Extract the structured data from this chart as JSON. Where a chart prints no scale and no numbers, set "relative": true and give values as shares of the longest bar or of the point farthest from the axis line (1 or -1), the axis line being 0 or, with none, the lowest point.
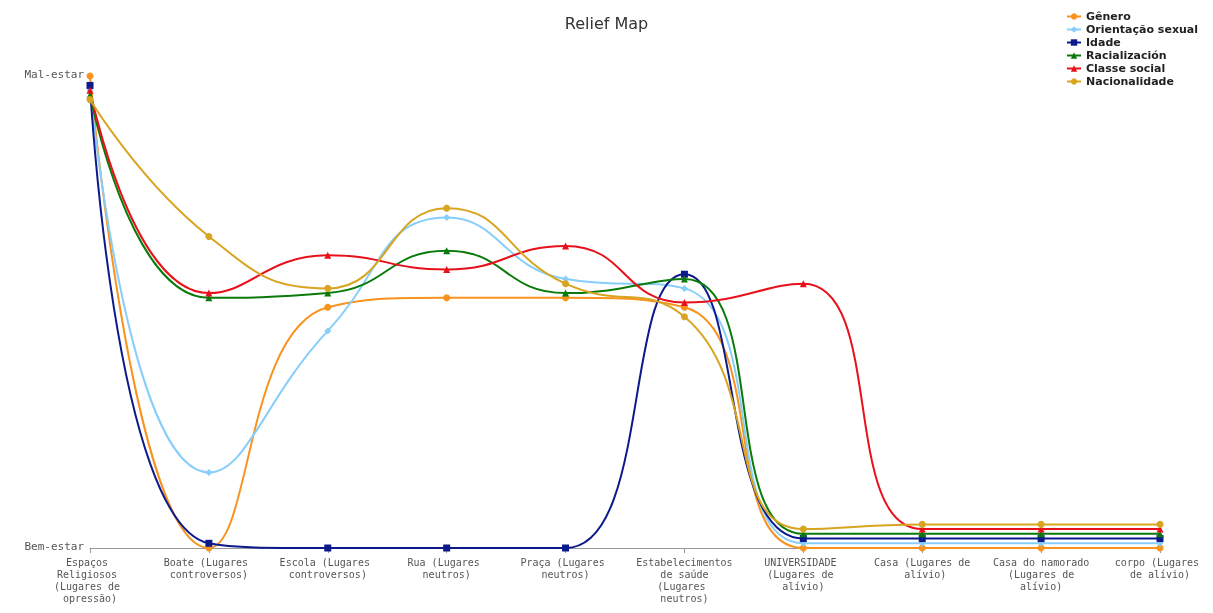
{
  "chart_data": {
    "type": "line",
    "title": "Relief Map",
    "categories": [
      "Espaços Religiosos (Lugares de opressão)",
      "Boate (Lugares controversos)",
      "Escola (Lugares controversos)",
      "Rua (Lugares neutros)",
      "Praça (Lugares neutros)",
      "Estabelecimentos de saúde (Lugares neutros)",
      "UNIVERSIDADE (Lugares de alívio)",
      "Casa (Lugares de alívio)",
      "Casa do namorado (Lugares de alívio)",
      "corpo (Lugares de alívio)"
    ],
    "relative": true,
    "annotations": [
      "Mal-estar",
      "Bem-estar"
    ],
    "grid": false,
    "legend": "top right",
    "series": [
      {
        "name": "Gênero",
        "color": "#f7931e",
        "marker": "circle",
        "values": [
          1,
          0,
          0.51,
          0.53,
          0.53,
          0.51,
          0,
          0,
          0,
          0
        ]
      },
      {
        "name": "Orientação sexual",
        "color": "#87cefa",
        "marker": "diamond",
        "values": [
          0.97,
          0.16,
          0.46,
          0.7,
          0.57,
          0.55,
          0.01,
          0.01,
          0.01,
          0.01
        ]
      },
      {
        "name": "Idade",
        "color": "#0c1a8c",
        "marker": "square",
        "values": [
          0.98,
          0.01,
          0,
          0,
          0,
          0.58,
          0.02,
          0.02,
          0.02,
          0.02
        ]
      },
      {
        "name": "Racialización",
        "color": "#0a7a0a",
        "marker": "triangle",
        "values": [
          0.96,
          0.53,
          0.54,
          0.63,
          0.54,
          0.57,
          0.03,
          0.03,
          0.03,
          0.03
        ]
      },
      {
        "name": "Classe social",
        "color": "#e8101a",
        "marker": "triangle",
        "values": [
          0.97,
          0.54,
          0.62,
          0.59,
          0.64,
          0.52,
          0.56,
          0.04,
          0.04,
          0.04
        ]
      },
      {
        "name": "Nacionalidade",
        "color": "#d9a521",
        "marker": "circle",
        "values": [
          0.95,
          0.66,
          0.55,
          0.72,
          0.56,
          0.49,
          0.04,
          0.05,
          0.05,
          0.05
        ]
      }
    ]
  }
}
